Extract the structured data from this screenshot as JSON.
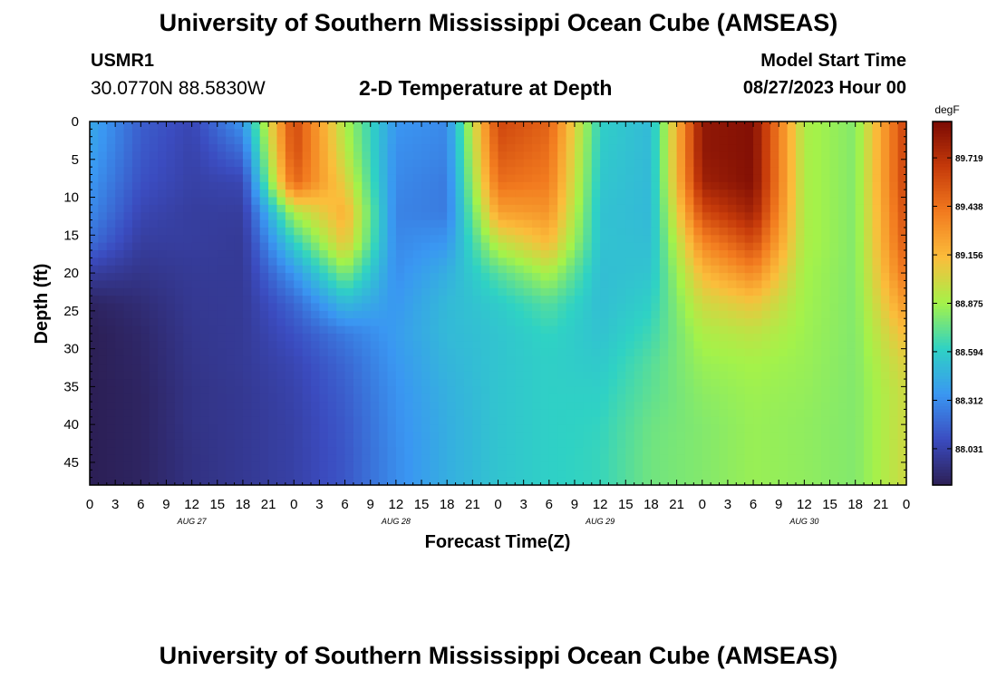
{
  "header": {
    "title": "University of Southern Mississippi Ocean Cube (AMSEAS)",
    "station_id": "USMR1",
    "coordinates": "30.0770N  88.5830W",
    "subtitle": "2-D Temperature at Depth",
    "model_start_label": "Model Start Time",
    "model_start_value": "08/27/2023 Hour 00"
  },
  "footer": {
    "title": "University of Southern Mississippi Ocean Cube (AMSEAS)"
  },
  "colors": {
    "colormap": [
      "#2c1f55",
      "#3b4cc0",
      "#3a97f2",
      "#2fd2c4",
      "#a4f24a",
      "#fbbd3b",
      "#f27b1f",
      "#c63a0a",
      "#7a0a04"
    ]
  },
  "chart_data": {
    "type": "heatmap",
    "xlabel": "Forecast Time(Z)",
    "ylabel": "Depth (ft)",
    "x_range": [
      0,
      96
    ],
    "ylim": [
      0,
      48
    ],
    "x_tick_labels": [
      "0",
      "3",
      "6",
      "9",
      "12",
      "15",
      "18",
      "21",
      "0",
      "3",
      "6",
      "9",
      "12",
      "15",
      "18",
      "21",
      "0",
      "3",
      "6",
      "9",
      "12",
      "15",
      "18",
      "21",
      "0",
      "3",
      "6",
      "9",
      "12",
      "15",
      "18",
      "21",
      "0"
    ],
    "y_ticks": [
      0,
      5,
      10,
      15,
      20,
      25,
      30,
      35,
      40,
      45
    ],
    "y_tick_labels": [
      "0",
      "5",
      "10",
      "15",
      "20",
      "25",
      "30",
      "35",
      "40",
      "45"
    ],
    "day_labels": [
      {
        "label": "AUG 27",
        "hour": 12
      },
      {
        "label": "AUG 28",
        "hour": 36
      },
      {
        "label": "AUG 29",
        "hour": 60
      },
      {
        "label": "AUG 30",
        "hour": 84
      }
    ],
    "colorbar": {
      "unit": "degF",
      "range": [
        87.82,
        89.93
      ],
      "ticks": [
        88.031,
        88.312,
        88.594,
        88.875,
        89.156,
        89.438,
        89.719
      ],
      "tick_labels": [
        "88.031",
        "88.312",
        "88.594",
        "88.875",
        "89.156",
        "89.438",
        "89.719"
      ]
    },
    "depth_levels": [
      0,
      4,
      8,
      12,
      16,
      20,
      24,
      28,
      32,
      36,
      40,
      44,
      48
    ],
    "time_hours": [
      0,
      6,
      12,
      18,
      24,
      30,
      36,
      42,
      48,
      54,
      60,
      66,
      72,
      78,
      84,
      90,
      96
    ],
    "values": [
      [
        88.43,
        88.15,
        88.05,
        88.35,
        89.62,
        88.9,
        88.35,
        88.3,
        89.62,
        89.5,
        88.6,
        88.5,
        89.85,
        89.9,
        88.9,
        88.8,
        89.65
      ],
      [
        88.4,
        88.13,
        88.03,
        88.2,
        89.6,
        88.95,
        88.32,
        88.28,
        89.55,
        89.45,
        88.58,
        88.5,
        89.85,
        89.9,
        88.9,
        88.8,
        89.65
      ],
      [
        88.35,
        88.1,
        88.02,
        88.05,
        89.5,
        89.05,
        88.3,
        88.25,
        89.45,
        89.4,
        88.56,
        88.5,
        89.8,
        89.9,
        88.9,
        88.8,
        89.65
      ],
      [
        88.3,
        88.05,
        88.0,
        88.0,
        88.9,
        89.2,
        88.28,
        88.25,
        89.25,
        89.3,
        88.54,
        88.5,
        89.6,
        89.8,
        88.9,
        88.8,
        89.6
      ],
      [
        88.2,
        88.0,
        88.0,
        87.98,
        88.6,
        89.1,
        88.3,
        88.35,
        88.95,
        89.15,
        88.54,
        88.52,
        89.35,
        89.6,
        88.9,
        88.8,
        89.55
      ],
      [
        88.0,
        87.95,
        87.98,
        87.98,
        88.35,
        88.8,
        88.32,
        88.45,
        88.7,
        88.9,
        88.52,
        88.55,
        89.15,
        89.35,
        88.88,
        88.8,
        89.45
      ],
      [
        87.85,
        87.9,
        87.97,
        87.98,
        88.18,
        88.5,
        88.35,
        88.5,
        88.58,
        88.7,
        88.52,
        88.6,
        89.0,
        89.1,
        88.87,
        88.8,
        89.3
      ],
      [
        87.82,
        87.87,
        87.96,
        87.98,
        88.1,
        88.25,
        88.37,
        88.5,
        88.55,
        88.62,
        88.54,
        88.65,
        88.9,
        88.95,
        88.86,
        88.8,
        89.15
      ],
      [
        87.82,
        87.86,
        87.95,
        87.98,
        88.05,
        88.18,
        88.35,
        88.48,
        88.55,
        88.6,
        88.57,
        88.7,
        88.85,
        88.88,
        88.85,
        88.8,
        89.05
      ],
      [
        87.82,
        87.85,
        87.94,
        87.97,
        88.03,
        88.15,
        88.33,
        88.46,
        88.55,
        88.6,
        88.6,
        88.72,
        88.82,
        88.86,
        88.84,
        88.8,
        89.0
      ],
      [
        87.82,
        87.85,
        87.94,
        87.97,
        88.02,
        88.13,
        88.32,
        88.45,
        88.55,
        88.6,
        88.62,
        88.75,
        88.8,
        88.85,
        88.83,
        88.8,
        89.0
      ],
      [
        87.82,
        87.85,
        87.93,
        87.97,
        88.02,
        88.12,
        88.31,
        88.45,
        88.55,
        88.6,
        88.63,
        88.76,
        88.8,
        88.85,
        88.83,
        88.8,
        89.0
      ],
      [
        87.82,
        87.85,
        87.93,
        87.97,
        88.02,
        88.12,
        88.31,
        88.45,
        88.55,
        88.6,
        88.63,
        88.76,
        88.8,
        88.85,
        88.83,
        88.8,
        89.0
      ]
    ]
  }
}
